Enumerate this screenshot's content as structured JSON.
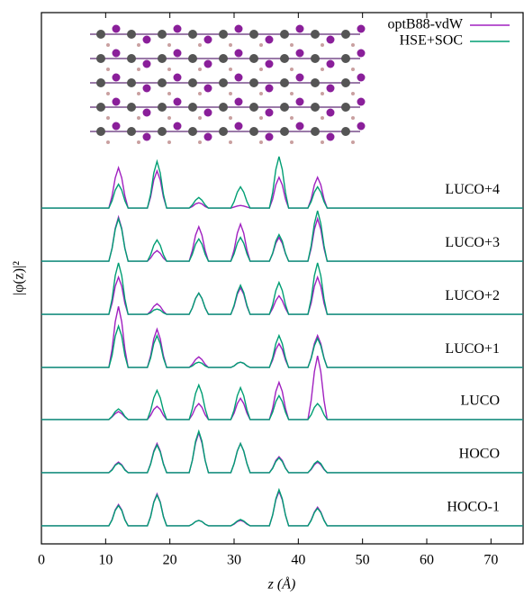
{
  "chart_data": {
    "type": "line",
    "xlabel": "z (Å)",
    "ylabel": "|φ(z)|²",
    "xlim": [
      0,
      75
    ],
    "xticks": [
      0,
      10,
      20,
      30,
      40,
      50,
      60,
      70
    ],
    "ylim": [
      0,
      10
    ],
    "legend_position": "upper right",
    "x": [
      0,
      8,
      10.5,
      11,
      11.5,
      12,
      12.5,
      13,
      13.5,
      15,
      16.5,
      17,
      17.5,
      18,
      18.5,
      19,
      19.5,
      21,
      23,
      23.5,
      24,
      24.5,
      25,
      25.5,
      26,
      28,
      29.5,
      30,
      30.5,
      31,
      31.5,
      32,
      32.5,
      34,
      35.5,
      36,
      36.5,
      37,
      37.5,
      38,
      38.5,
      40,
      41.5,
      42,
      42.5,
      43,
      43.5,
      44,
      44.5,
      47,
      75
    ],
    "curve_labels": [
      "LUCO+4",
      "LUCO+3",
      "LUCO+2",
      "LUCO+1",
      "LUCO",
      "HOCO",
      "HOCO-1"
    ],
    "series": [
      {
        "name": "optB88-vdW",
        "color": "#a020c0",
        "curves": [
          [
            6.32,
            6.32,
            6.32,
            6.55,
            6.89,
            7.08,
            6.89,
            6.55,
            6.32,
            6.32,
            6.32,
            6.53,
            6.85,
            7.02,
            6.85,
            6.53,
            6.32,
            6.32,
            6.32,
            6.35,
            6.4,
            6.42,
            6.4,
            6.35,
            6.32,
            6.32,
            6.32,
            6.34,
            6.36,
            6.37,
            6.36,
            6.34,
            6.32,
            6.32,
            6.32,
            6.49,
            6.76,
            6.9,
            6.76,
            6.49,
            6.32,
            6.32,
            6.32,
            6.49,
            6.76,
            6.9,
            6.76,
            6.49,
            6.32,
            6.32,
            6.32
          ],
          [
            5.32,
            5.32,
            5.32,
            5.57,
            5.94,
            6.15,
            5.94,
            5.57,
            5.32,
            5.32,
            5.32,
            5.38,
            5.47,
            5.52,
            5.47,
            5.38,
            5.32,
            5.32,
            5.32,
            5.52,
            5.81,
            5.97,
            5.81,
            5.52,
            5.32,
            5.32,
            5.32,
            5.53,
            5.85,
            6.02,
            5.85,
            5.53,
            5.32,
            5.32,
            5.32,
            5.46,
            5.66,
            5.77,
            5.66,
            5.46,
            5.32,
            5.32,
            5.32,
            5.56,
            5.92,
            6.12,
            5.92,
            5.56,
            5.32,
            5.32,
            5.32
          ],
          [
            4.32,
            4.32,
            4.32,
            4.53,
            4.85,
            5.02,
            4.85,
            4.53,
            4.32,
            4.32,
            4.32,
            4.38,
            4.47,
            4.52,
            4.47,
            4.38,
            4.32,
            4.32,
            4.32,
            4.44,
            4.62,
            4.72,
            4.62,
            4.44,
            4.32,
            4.32,
            4.32,
            4.47,
            4.7,
            4.82,
            4.7,
            4.47,
            4.32,
            4.32,
            4.32,
            4.43,
            4.58,
            4.67,
            4.58,
            4.43,
            4.32,
            4.32,
            4.32,
            4.53,
            4.85,
            5.02,
            4.85,
            4.53,
            4.32,
            4.32,
            4.32
          ],
          [
            3.32,
            3.32,
            3.32,
            3.67,
            4.18,
            4.47,
            4.18,
            3.67,
            3.32,
            3.32,
            3.32,
            3.54,
            3.86,
            4.04,
            3.86,
            3.54,
            3.32,
            3.32,
            3.32,
            3.38,
            3.47,
            3.52,
            3.47,
            3.38,
            3.32,
            3.32,
            3.32,
            3.35,
            3.4,
            3.42,
            3.4,
            3.35,
            3.32,
            3.32,
            3.32,
            3.46,
            3.66,
            3.77,
            3.66,
            3.46,
            3.32,
            3.32,
            3.32,
            3.5,
            3.77,
            3.92,
            3.77,
            3.5,
            3.32,
            3.32,
            3.32
          ],
          [
            2.34,
            2.34,
            2.34,
            2.39,
            2.45,
            2.49,
            2.45,
            2.39,
            2.34,
            2.34,
            2.34,
            2.42,
            2.53,
            2.59,
            2.53,
            2.42,
            2.34,
            2.34,
            2.34,
            2.43,
            2.57,
            2.64,
            2.57,
            2.43,
            2.34,
            2.34,
            2.34,
            2.46,
            2.64,
            2.74,
            2.64,
            2.46,
            2.34,
            2.34,
            2.34,
            2.55,
            2.87,
            3.04,
            2.87,
            2.55,
            2.34,
            2.34,
            2.34,
            2.7,
            3.24,
            3.54,
            3.24,
            2.7,
            2.34,
            2.34,
            2.34
          ],
          [
            1.34,
            1.34,
            1.34,
            1.4,
            1.49,
            1.54,
            1.49,
            1.4,
            1.34,
            1.34,
            1.34,
            1.51,
            1.75,
            1.89,
            1.75,
            1.51,
            1.34,
            1.34,
            1.34,
            1.57,
            1.9,
            2.09,
            1.9,
            1.57,
            1.34,
            1.34,
            1.34,
            1.51,
            1.75,
            1.89,
            1.75,
            1.51,
            1.34,
            1.34,
            1.34,
            1.43,
            1.57,
            1.64,
            1.57,
            1.43,
            1.34,
            1.34,
            1.34,
            1.4,
            1.49,
            1.54,
            1.49,
            1.4,
            1.34,
            1.34,
            1.34
          ],
          [
            0.34,
            0.34,
            0.34,
            0.46,
            0.64,
            0.74,
            0.64,
            0.46,
            0.34,
            0.34,
            0.34,
            0.52,
            0.79,
            0.94,
            0.79,
            0.52,
            0.34,
            0.34,
            0.34,
            0.37,
            0.42,
            0.44,
            0.42,
            0.37,
            0.34,
            0.34,
            0.34,
            0.37,
            0.42,
            0.44,
            0.42,
            0.37,
            0.34,
            0.34,
            0.34,
            0.54,
            0.83,
            0.99,
            0.83,
            0.54,
            0.34,
            0.34,
            0.34,
            0.45,
            0.6,
            0.69,
            0.6,
            0.45,
            0.34,
            0.34,
            0.34
          ]
        ]
      },
      {
        "name": "HSE+SOC",
        "color": "#009e73",
        "curves": [
          [
            6.32,
            6.32,
            6.32,
            6.46,
            6.66,
            6.77,
            6.66,
            6.46,
            6.32,
            6.32,
            6.32,
            6.58,
            6.98,
            7.2,
            6.98,
            6.58,
            6.32,
            6.32,
            6.32,
            6.38,
            6.47,
            6.52,
            6.47,
            6.38,
            6.32,
            6.32,
            6.32,
            6.44,
            6.62,
            6.72,
            6.62,
            6.44,
            6.32,
            6.32,
            6.32,
            6.61,
            7.05,
            7.29,
            7.05,
            6.61,
            6.32,
            6.32,
            6.32,
            6.44,
            6.62,
            6.72,
            6.62,
            6.44,
            6.32,
            6.32,
            6.32
          ],
          [
            5.32,
            5.32,
            5.32,
            5.56,
            5.92,
            6.12,
            5.92,
            5.56,
            5.32,
            5.32,
            5.32,
            5.44,
            5.62,
            5.72,
            5.62,
            5.44,
            5.32,
            5.32,
            5.32,
            5.45,
            5.64,
            5.74,
            5.64,
            5.45,
            5.32,
            5.32,
            5.32,
            5.46,
            5.66,
            5.77,
            5.66,
            5.46,
            5.32,
            5.32,
            5.32,
            5.47,
            5.7,
            5.82,
            5.7,
            5.47,
            5.32,
            5.32,
            5.32,
            5.61,
            6.03,
            6.27,
            6.03,
            5.61,
            5.32,
            5.32,
            5.32
          ],
          [
            4.32,
            4.32,
            4.32,
            4.61,
            5.05,
            5.29,
            5.05,
            4.61,
            4.32,
            4.32,
            4.32,
            4.35,
            4.4,
            4.42,
            4.4,
            4.35,
            4.32,
            4.32,
            4.32,
            4.44,
            4.62,
            4.72,
            4.62,
            4.44,
            4.32,
            4.32,
            4.32,
            4.49,
            4.73,
            4.87,
            4.73,
            4.49,
            4.32,
            4.32,
            4.32,
            4.5,
            4.77,
            4.92,
            4.77,
            4.5,
            4.32,
            4.32,
            4.32,
            4.61,
            5.05,
            5.29,
            5.05,
            4.61,
            4.32,
            4.32,
            4.32
          ],
          [
            3.32,
            3.32,
            3.32,
            3.55,
            3.91,
            4.1,
            3.91,
            3.55,
            3.32,
            3.32,
            3.32,
            3.5,
            3.77,
            3.92,
            3.77,
            3.5,
            3.32,
            3.32,
            3.32,
            3.35,
            3.4,
            3.42,
            3.4,
            3.35,
            3.32,
            3.32,
            3.32,
            3.35,
            3.4,
            3.42,
            3.4,
            3.35,
            3.32,
            3.32,
            3.32,
            3.5,
            3.77,
            3.92,
            3.77,
            3.5,
            3.32,
            3.32,
            3.32,
            3.49,
            3.73,
            3.87,
            3.73,
            3.49,
            3.32,
            3.32,
            3.32
          ],
          [
            2.34,
            2.34,
            2.34,
            2.4,
            2.49,
            2.54,
            2.49,
            2.4,
            2.34,
            2.34,
            2.34,
            2.51,
            2.75,
            2.89,
            2.75,
            2.51,
            2.34,
            2.34,
            2.34,
            2.54,
            2.83,
            2.99,
            2.83,
            2.54,
            2.34,
            2.34,
            2.34,
            2.52,
            2.79,
            2.94,
            2.79,
            2.52,
            2.34,
            2.34,
            2.34,
            2.48,
            2.68,
            2.79,
            2.68,
            2.48,
            2.34,
            2.34,
            2.34,
            2.43,
            2.57,
            2.64,
            2.57,
            2.43,
            2.34,
            2.34,
            2.34
          ],
          [
            1.34,
            1.34,
            1.34,
            1.39,
            1.48,
            1.52,
            1.48,
            1.39,
            1.34,
            1.34,
            1.34,
            1.5,
            1.73,
            1.86,
            1.73,
            1.5,
            1.34,
            1.34,
            1.34,
            1.57,
            1.93,
            2.12,
            1.93,
            1.57,
            1.34,
            1.34,
            1.34,
            1.51,
            1.75,
            1.89,
            1.75,
            1.51,
            1.34,
            1.34,
            1.34,
            1.42,
            1.55,
            1.62,
            1.55,
            1.42,
            1.34,
            1.34,
            1.34,
            1.41,
            1.51,
            1.56,
            1.51,
            1.41,
            1.34,
            1.34,
            1.34
          ],
          [
            0.34,
            0.34,
            0.34,
            0.45,
            0.63,
            0.72,
            0.63,
            0.45,
            0.34,
            0.34,
            0.34,
            0.51,
            0.78,
            0.92,
            0.78,
            0.51,
            0.34,
            0.34,
            0.34,
            0.37,
            0.42,
            0.44,
            0.42,
            0.37,
            0.34,
            0.34,
            0.34,
            0.38,
            0.43,
            0.46,
            0.43,
            0.38,
            0.34,
            0.34,
            0.34,
            0.54,
            0.85,
            1.02,
            0.85,
            0.54,
            0.34,
            0.34,
            0.34,
            0.44,
            0.59,
            0.67,
            0.59,
            0.44,
            0.34,
            0.34,
            0.34
          ]
        ]
      }
    ]
  }
}
